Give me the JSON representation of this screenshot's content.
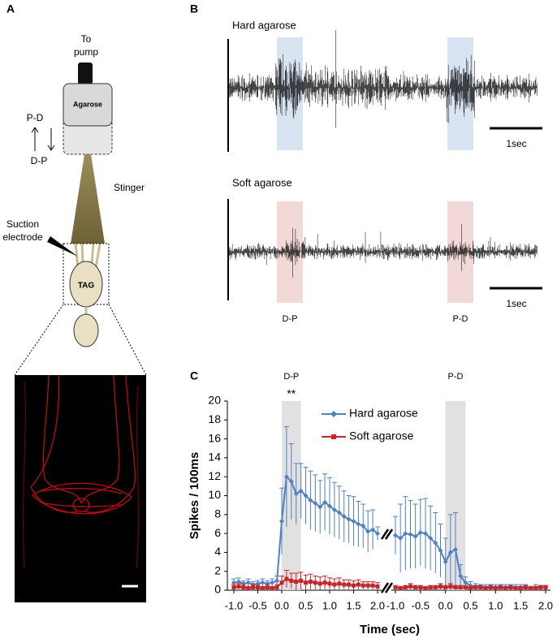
{
  "panel_a": {
    "label": "A",
    "to_pump": [
      "To",
      "pump"
    ],
    "agarose": "Agarose",
    "p_d": "P-D",
    "d_p": "D-P",
    "stinger": "Stinger",
    "suction_electrode": [
      "Suction",
      "electrode"
    ],
    "tag": "TAG"
  },
  "panel_b": {
    "label": "B",
    "hard_title": "Hard agarose",
    "soft_title": "Soft agarose",
    "scale_hard": "1sec",
    "scale_soft": "1sec",
    "d_p": "D-P",
    "p_d": "P-D"
  },
  "panel_c": {
    "label": "C"
  },
  "chart_data": [
    {
      "type": "line",
      "ylabel": "Spikes / 100ms",
      "xlabel": "Time (sec)",
      "annotation": "**",
      "band_label": "D-P",
      "band": [
        0,
        0.4
      ],
      "ylim": [
        0,
        20
      ],
      "yticks": [
        0,
        2,
        4,
        6,
        8,
        10,
        12,
        14,
        16,
        18,
        20
      ],
      "xlim": [
        -1,
        2
      ],
      "xticks": [
        {
          "value": -1,
          "label": "-1.0"
        },
        {
          "value": -0.5,
          "label": "-0.5"
        },
        {
          "value": 0,
          "label": "0.0"
        },
        {
          "value": 0.5,
          "label": "0.5"
        },
        {
          "value": 1,
          "label": "1.0"
        },
        {
          "value": 1.5,
          "label": "1.5"
        },
        {
          "value": 2,
          "label": "2.0"
        }
      ],
      "x": [
        -1.0,
        -0.9,
        -0.8,
        -0.7,
        -0.6,
        -0.5,
        -0.4,
        -0.3,
        -0.2,
        -0.1,
        0.0,
        0.1,
        0.2,
        0.3,
        0.4,
        0.5,
        0.6,
        0.7,
        0.8,
        0.9,
        1.0,
        1.1,
        1.2,
        1.3,
        1.4,
        1.5,
        1.6,
        1.7,
        1.8,
        1.9,
        2.0
      ],
      "series": [
        {
          "name": "Hard agarose",
          "color": "#4f81bd",
          "marker": "diamond",
          "values": [
            0.8,
            0.9,
            0.7,
            0.8,
            0.6,
            0.7,
            0.8,
            0.7,
            0.8,
            1.0,
            7.3,
            12.0,
            11.5,
            10.2,
            10.5,
            10.0,
            9.5,
            9.2,
            8.8,
            9.3,
            8.9,
            8.5,
            8.2,
            7.8,
            7.5,
            7.3,
            7.0,
            6.8,
            6.2,
            6.4,
            6.0
          ],
          "errors": [
            0.4,
            0.4,
            0.3,
            0.4,
            0.3,
            0.3,
            0.4,
            0.3,
            0.4,
            0.5,
            3.5,
            5.3,
            4.0,
            3.2,
            2.9,
            3.0,
            3.1,
            3.0,
            2.8,
            3.0,
            3.0,
            2.9,
            2.8,
            2.7,
            2.5,
            2.6,
            2.4,
            2.3,
            2.2,
            2.1,
            0.7
          ]
        },
        {
          "name": "Soft agarose",
          "color": "#c0282d",
          "marker": "square",
          "values": [
            0.3,
            0.4,
            0.3,
            0.2,
            0.3,
            0.3,
            0.2,
            0.3,
            0.2,
            0.3,
            0.8,
            1.2,
            1.0,
            0.9,
            1.0,
            0.8,
            0.9,
            0.8,
            0.7,
            0.8,
            0.7,
            0.6,
            0.7,
            0.6,
            0.6,
            0.5,
            0.6,
            0.5,
            0.5,
            0.5,
            0.4
          ],
          "errors": [
            0.3,
            0.3,
            0.3,
            0.2,
            0.3,
            0.3,
            0.2,
            0.3,
            0.2,
            0.3,
            0.7,
            0.9,
            0.8,
            0.9,
            0.9,
            0.8,
            0.8,
            0.7,
            0.7,
            0.7,
            0.6,
            0.6,
            0.6,
            0.5,
            0.5,
            0.5,
            0.5,
            0.4,
            0.4,
            0.4,
            0.4
          ]
        }
      ]
    },
    {
      "type": "line",
      "band_label": "P-D",
      "band": [
        0,
        0.4
      ],
      "ylim": [
        0,
        20
      ],
      "xlim": [
        -1,
        2
      ],
      "xticks": [
        {
          "value": -1,
          "label": "-1.0"
        },
        {
          "value": -0.5,
          "label": "-0.5"
        },
        {
          "value": 0,
          "label": "0.0"
        },
        {
          "value": 0.5,
          "label": "0.5"
        },
        {
          "value": 1,
          "label": "1.0"
        },
        {
          "value": 1.5,
          "label": "1.5"
        },
        {
          "value": 2,
          "label": "2.0"
        }
      ],
      "x": [
        -1.0,
        -0.9,
        -0.8,
        -0.7,
        -0.6,
        -0.5,
        -0.4,
        -0.3,
        -0.2,
        -0.1,
        0.0,
        0.1,
        0.2,
        0.3,
        0.4,
        0.5,
        0.6,
        0.7,
        0.8,
        0.9,
        1.0,
        1.1,
        1.2,
        1.3,
        1.4,
        1.5,
        1.6,
        1.7,
        1.8,
        1.9,
        2.0
      ],
      "series": [
        {
          "color": "#4f81bd",
          "marker": "diamond",
          "values": [
            5.8,
            5.5,
            6.0,
            5.9,
            5.7,
            6.1,
            6.0,
            5.5,
            5.0,
            4.2,
            3.0,
            4.0,
            4.3,
            1.5,
            0.8,
            0.5,
            0.4,
            0.3,
            0.3,
            0.3,
            0.3,
            0.3,
            0.3,
            0.3,
            0.3,
            0.3,
            0.3,
            0.2,
            0.3,
            0.3,
            0.3
          ],
          "errors": [
            2.0,
            3.6,
            3.9,
            3.6,
            3.4,
            3.5,
            3.7,
            3.4,
            3.2,
            2.8,
            2.5,
            4.0,
            3.9,
            1.2,
            0.6,
            0.4,
            0.3,
            0.3,
            0.3,
            0.3,
            0.3,
            0.3,
            0.3,
            0.3,
            0.3,
            0.3,
            0.3,
            0.2,
            0.3,
            0.2,
            0.2
          ]
        },
        {
          "color": "#c0282d",
          "marker": "square",
          "values": [
            0.3,
            0.2,
            0.3,
            0.4,
            0.3,
            0.3,
            0.2,
            0.3,
            0.3,
            0.4,
            0.3,
            0.4,
            0.3,
            0.3,
            0.3,
            0.2,
            0.3,
            0.3,
            0.2,
            0.3,
            0.2,
            0.3,
            0.2,
            0.3,
            0.2,
            0.2,
            0.3,
            0.2,
            0.2,
            0.3,
            0.3
          ],
          "errors": [
            0.2,
            0.2,
            0.2,
            0.3,
            0.2,
            0.2,
            0.2,
            0.2,
            0.2,
            0.3,
            0.2,
            0.3,
            0.2,
            0.2,
            0.2,
            0.2,
            0.2,
            0.2,
            0.2,
            0.2,
            0.2,
            0.2,
            0.2,
            0.2,
            0.2,
            0.2,
            0.2,
            0.2,
            0.2,
            0.2,
            0.2
          ]
        }
      ]
    }
  ]
}
